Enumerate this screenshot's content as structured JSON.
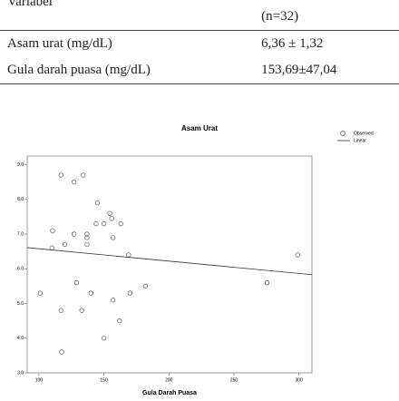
{
  "table": {
    "header": [
      "Variabel",
      "(n=32)"
    ],
    "rows": [
      [
        "Asam urat (mg/dL)",
        "6,36 ± 1,32"
      ],
      [
        "Gula darah puasa (mg/dL)",
        "153,69±47,04"
      ]
    ]
  },
  "chart_data": {
    "type": "scatter",
    "title": "Asam Urat",
    "x_label": "Gula Darah Puasa",
    "xlim": [
      91,
      310
    ],
    "ylim": [
      3,
      9.25
    ],
    "xticks": [
      100,
      150,
      200,
      250,
      300
    ],
    "yticks": [
      {
        "value": 3,
        "label": "3.0"
      },
      {
        "value": 4,
        "label": "4.0"
      },
      {
        "value": 5,
        "label": "5.0"
      },
      {
        "value": 6,
        "label": "6.0"
      },
      {
        "value": 7,
        "label": "7.0"
      },
      {
        "value": 8,
        "label": "8.0"
      },
      {
        "value": 9,
        "label": "9.0"
      }
    ],
    "series": [
      {
        "name": "Observed",
        "color": "#555555",
        "x": [
          117,
          127,
          134,
          145,
          154.5,
          156,
          150,
          144,
          163,
          110.5,
          127,
          137,
          137,
          157,
          137,
          120,
          110,
          169,
          299,
          129,
          275.5,
          275.5,
          140,
          101,
          170,
          182,
          157,
          117,
          133,
          162,
          150,
          117.5
        ],
        "values": [
          8.7,
          8.5,
          8.7,
          7.9,
          7.6,
          7.45,
          7.3,
          7.3,
          7.3,
          7.1,
          7.0,
          7.0,
          6.9,
          6.9,
          6.7,
          6.7,
          6.6,
          6.4,
          6.4,
          5.6,
          5.6,
          5.6,
          5.3,
          5.3,
          5.3,
          5.5,
          5.1,
          4.8,
          4.8,
          4.5,
          4.0,
          3.6
        ]
      },
      {
        "name": "Linear",
        "color": "#333333",
        "x": [
          91,
          310
        ],
        "values": [
          6.61,
          5.83
        ]
      }
    ]
  }
}
